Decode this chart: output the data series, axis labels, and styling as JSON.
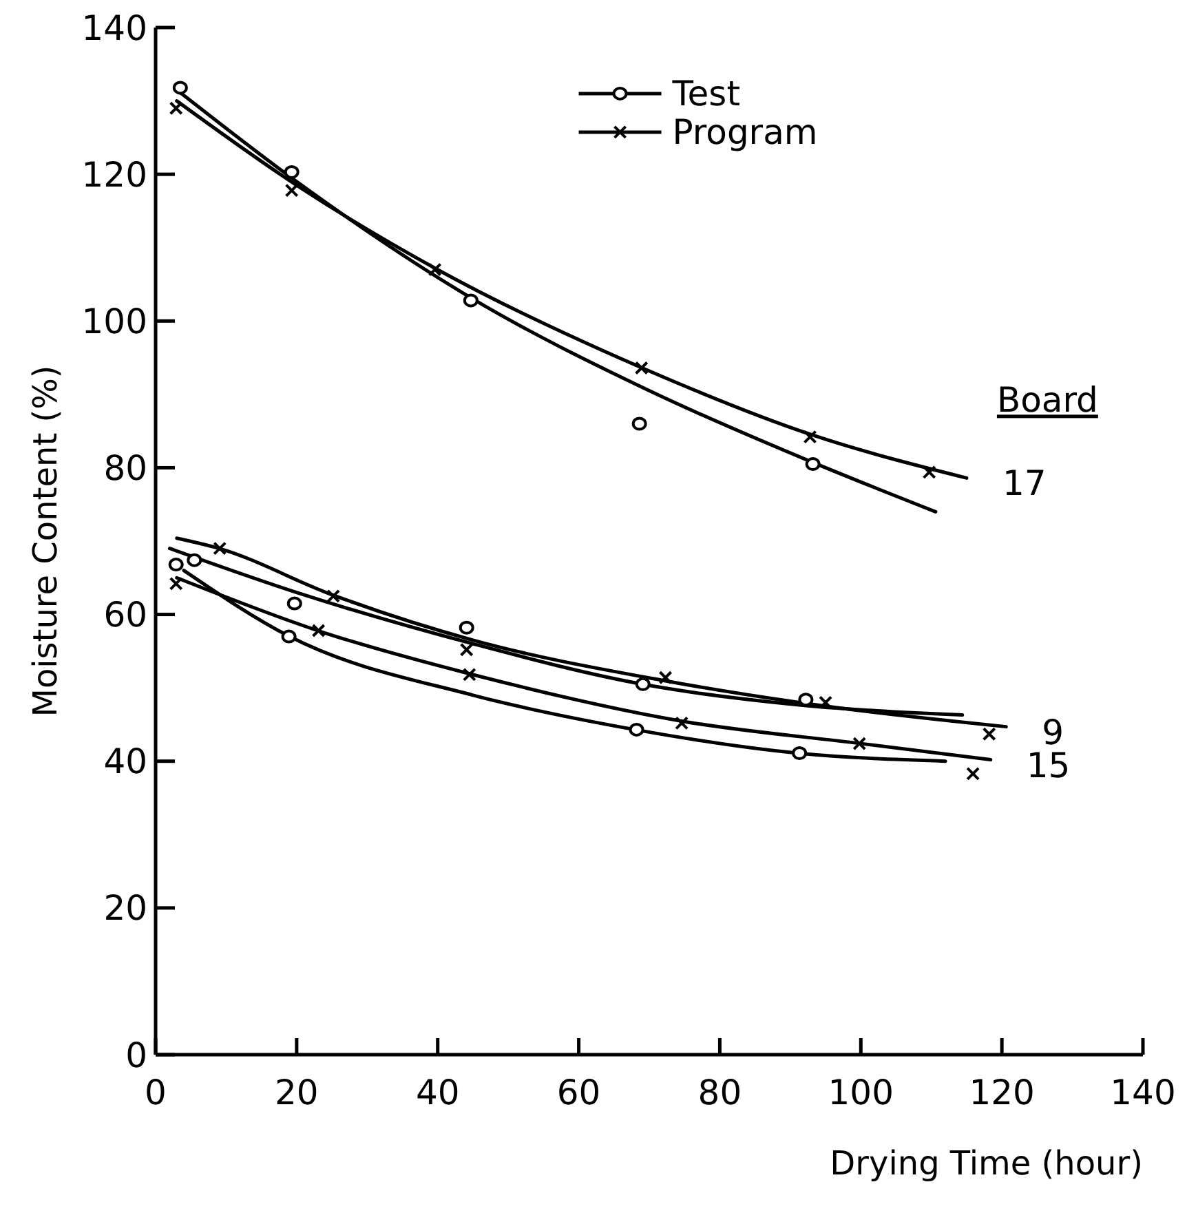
{
  "chart_data": {
    "type": "line",
    "xlabel": "Drying Time (hour)",
    "ylabel": "Moisture Content (%)",
    "xlim": [
      0,
      140
    ],
    "xticks": [
      0,
      20,
      40,
      60,
      80,
      100,
      120,
      140
    ],
    "ylim": [
      0,
      140
    ],
    "yticks": [
      0,
      20,
      40,
      60,
      80,
      100,
      120,
      140
    ],
    "grid": false,
    "legend": "top",
    "line_style": "solid",
    "series": [
      {
        "marker": "none",
        "color": "#000000",
        "x": [
          3,
          20,
          45,
          70,
          93,
          110.6
        ],
        "values": [
          131.5,
          119,
          103,
          90.5,
          80.8,
          74
        ]
      },
      {
        "marker": "none",
        "color": "#000000",
        "x": [
          3,
          20,
          40,
          69,
          93,
          115
        ],
        "values": [
          130,
          118.5,
          107,
          93.6,
          84.5,
          78.6
        ]
      },
      {
        "marker": "none",
        "color": "#000000",
        "x": [
          2,
          20,
          45,
          69,
          92,
          114.4
        ],
        "values": [
          69,
          63,
          56,
          50.5,
          47.6,
          46.3
        ]
      },
      {
        "marker": "none",
        "color": "#000000",
        "x": [
          3,
          9,
          25,
          45,
          72,
          95,
          120.6
        ],
        "values": [
          70.4,
          69,
          62.7,
          56.5,
          51,
          47.5,
          44.7
        ]
      },
      {
        "marker": "none",
        "color": "#000000",
        "x": [
          4,
          19,
          45,
          68,
          91,
          112
        ],
        "values": [
          66,
          57,
          49,
          44.3,
          41.1,
          40
        ]
      },
      {
        "marker": "none",
        "color": "#000000",
        "x": [
          3,
          23,
          45,
          75,
          100,
          118.4
        ],
        "values": [
          65,
          57.8,
          51.8,
          45.4,
          42.4,
          40.2
        ]
      },
      {
        "type": "scatter",
        "name": "Test",
        "marker": "circle",
        "color": "#000000",
        "x": [
          3.5,
          19.3,
          44.7,
          68.6,
          93.2,
          2.9,
          19.7,
          44.1,
          69.1,
          92.2,
          5.5,
          18.9,
          68.2,
          91.3
        ],
        "values": [
          131.8,
          120.3,
          102.8,
          86,
          80.5,
          66.8,
          61.5,
          58.2,
          50.5,
          48.4,
          67.4,
          57,
          44.3,
          41.1
        ]
      },
      {
        "type": "scatter",
        "name": "Program",
        "marker": "cross",
        "color": "#000000",
        "x": [
          2.9,
          19.3,
          39.6,
          68.9,
          92.8,
          109.7,
          9.1,
          25.2,
          44.1,
          72.3,
          95,
          118.2,
          2.9,
          23.1,
          44.5,
          74.6,
          99.8,
          115.9
        ],
        "values": [
          129,
          117.8,
          107,
          93.6,
          84.2,
          79.4,
          69,
          62.5,
          55.2,
          51.4,
          48,
          43.7,
          64.2,
          57.8,
          51.8,
          45.2,
          42.4,
          38.3
        ]
      }
    ],
    "annotations": [
      "Board",
      {
        "text": "17",
        "x": 115,
        "y": 78.6
      },
      {
        "text": "9",
        "x": 120.6,
        "y": 44.7
      },
      {
        "text": "15",
        "x": 118.4,
        "y": 40.2
      }
    ]
  }
}
